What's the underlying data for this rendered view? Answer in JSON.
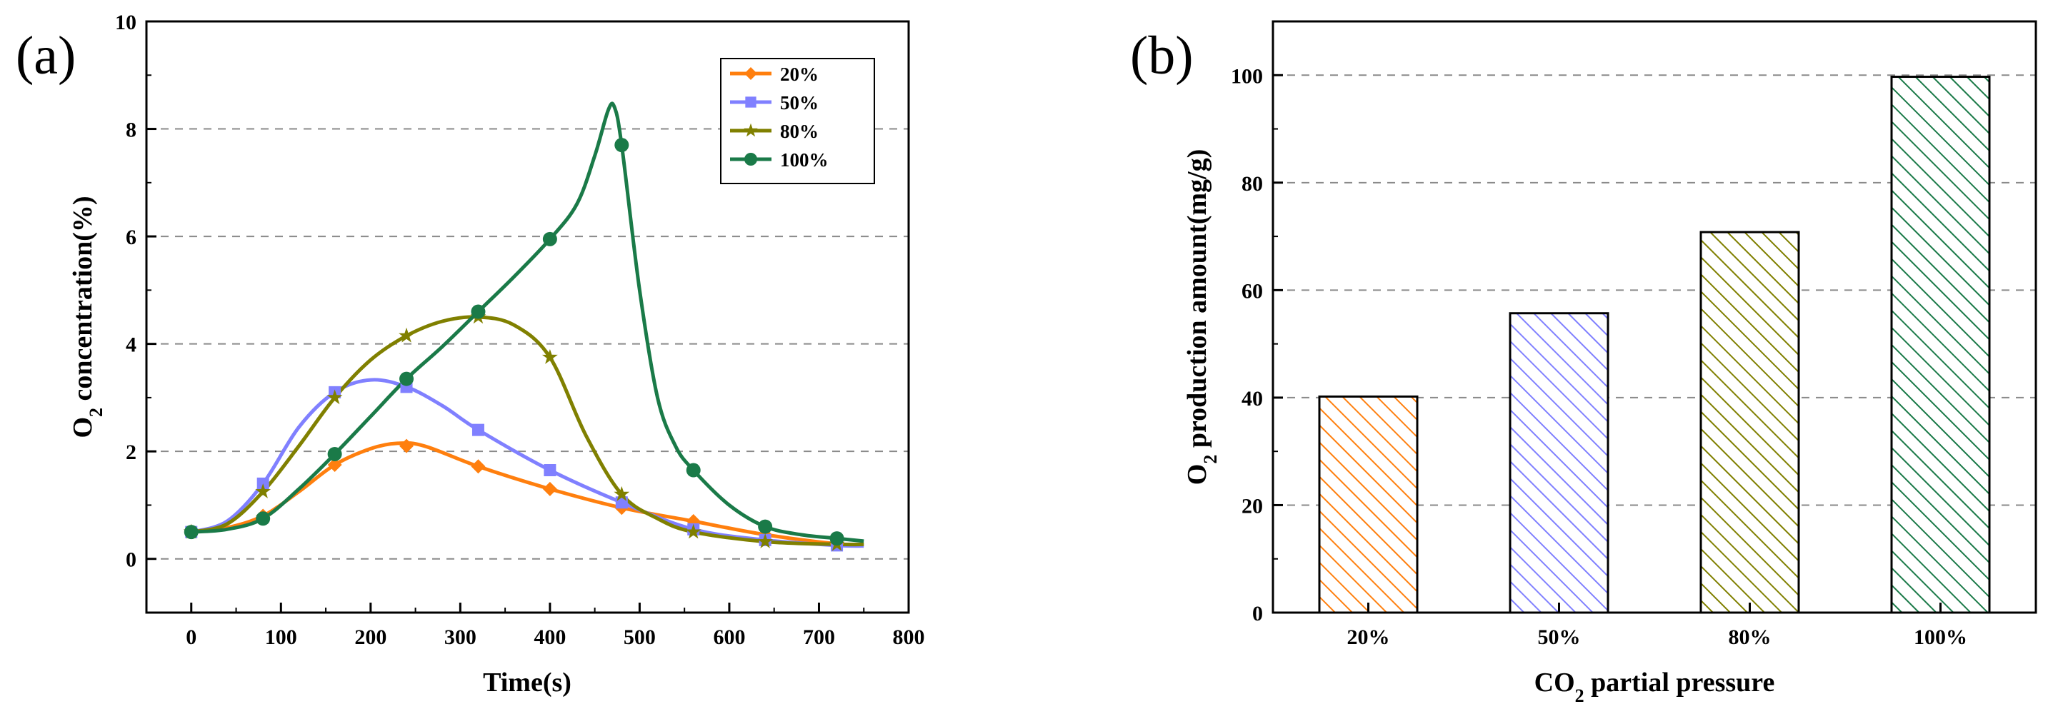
{
  "chart_data": [
    {
      "type": "line",
      "panel_label": "(a)",
      "xlabel": "Time(s)",
      "ylabel": {
        "main": "O",
        "sub": "2",
        "rest": " concentration(%)"
      },
      "xlim": [
        -50,
        800
      ],
      "ylim": [
        -1,
        10
      ],
      "xticks": [
        0,
        100,
        200,
        300,
        400,
        500,
        600,
        700,
        800
      ],
      "yticks": [
        0,
        2,
        4,
        6,
        8,
        10
      ],
      "grid_y": [
        0,
        2,
        4,
        6,
        8
      ],
      "legend": "top-right",
      "series": [
        {
          "name": "20%",
          "color": "#ff7f0e",
          "marker": "diamond",
          "x": [
            0,
            80,
            160,
            240,
            320,
            400,
            480,
            560,
            640,
            720
          ],
          "y": [
            0.5,
            0.8,
            1.75,
            2.1,
            1.72,
            1.3,
            0.95,
            0.7,
            0.45,
            0.28
          ],
          "curve_x": [
            0,
            40,
            80,
            120,
            160,
            200,
            230,
            260,
            320,
            400,
            480,
            560,
            640,
            720,
            750
          ],
          "curve_y": [
            0.5,
            0.58,
            0.8,
            1.25,
            1.75,
            2.05,
            2.15,
            2.1,
            1.72,
            1.3,
            0.95,
            0.7,
            0.45,
            0.28,
            0.27
          ]
        },
        {
          "name": "50%",
          "color": "#8080ff",
          "marker": "square",
          "x": [
            0,
            80,
            160,
            240,
            320,
            400,
            480,
            560,
            640,
            720
          ],
          "y": [
            0.5,
            1.4,
            3.1,
            3.2,
            2.4,
            1.65,
            1.05,
            0.55,
            0.35,
            0.25
          ],
          "curve_x": [
            0,
            40,
            80,
            120,
            160,
            200,
            240,
            280,
            320,
            400,
            480,
            560,
            640,
            720,
            750
          ],
          "curve_y": [
            0.5,
            0.7,
            1.4,
            2.45,
            3.1,
            3.33,
            3.2,
            2.85,
            2.4,
            1.65,
            1.05,
            0.55,
            0.35,
            0.25,
            0.24
          ]
        },
        {
          "name": "80%",
          "color": "#808000",
          "marker": "star",
          "x": [
            0,
            80,
            160,
            240,
            320,
            400,
            480,
            560,
            640,
            720
          ],
          "y": [
            0.5,
            1.25,
            3.0,
            4.15,
            4.5,
            3.75,
            1.2,
            0.5,
            0.32,
            0.27
          ],
          "curve_x": [
            0,
            40,
            80,
            120,
            160,
            200,
            240,
            280,
            320,
            360,
            400,
            440,
            480,
            520,
            560,
            640,
            720,
            750
          ],
          "curve_y": [
            0.5,
            0.65,
            1.25,
            2.1,
            3.0,
            3.7,
            4.15,
            4.42,
            4.5,
            4.35,
            3.75,
            2.3,
            1.2,
            0.75,
            0.5,
            0.32,
            0.27,
            0.27
          ]
        },
        {
          "name": "100%",
          "color": "#1a7a48",
          "marker": "circle",
          "x": [
            0,
            80,
            160,
            240,
            320,
            400,
            480,
            560,
            640,
            720
          ],
          "y": [
            0.5,
            0.75,
            1.95,
            3.35,
            4.6,
            5.95,
            7.7,
            1.65,
            0.6,
            0.38
          ],
          "curve_x": [
            0,
            40,
            80,
            120,
            160,
            200,
            240,
            280,
            320,
            360,
            400,
            430,
            450,
            465,
            472,
            480,
            500,
            520,
            540,
            560,
            600,
            640,
            680,
            720,
            750
          ],
          "curve_y": [
            0.5,
            0.55,
            0.75,
            1.3,
            1.95,
            2.65,
            3.35,
            3.95,
            4.6,
            5.25,
            5.95,
            6.6,
            7.5,
            8.35,
            8.4,
            7.7,
            5.0,
            3.0,
            2.1,
            1.65,
            1.0,
            0.6,
            0.45,
            0.38,
            0.33
          ]
        }
      ]
    },
    {
      "type": "bar",
      "panel_label": "(b)",
      "xlabel": {
        "main": "CO",
        "sub": "2",
        "rest": " partial pressure"
      },
      "ylabel": {
        "main": "O",
        "sub": "2",
        "rest": " production amount(mg/g)"
      },
      "ylim": [
        0,
        110
      ],
      "yticks": [
        0,
        20,
        40,
        60,
        80,
        100
      ],
      "grid_y": [
        20,
        40,
        60,
        80,
        100
      ],
      "categories": [
        "20%",
        "50%",
        "80%",
        "100%"
      ],
      "values": [
        40.2,
        55.7,
        70.8,
        99.7
      ],
      "colors": [
        "#ff7f0e",
        "#8080ff",
        "#808000",
        "#1a7a48"
      ],
      "fill": "diagonal-hatch"
    }
  ]
}
